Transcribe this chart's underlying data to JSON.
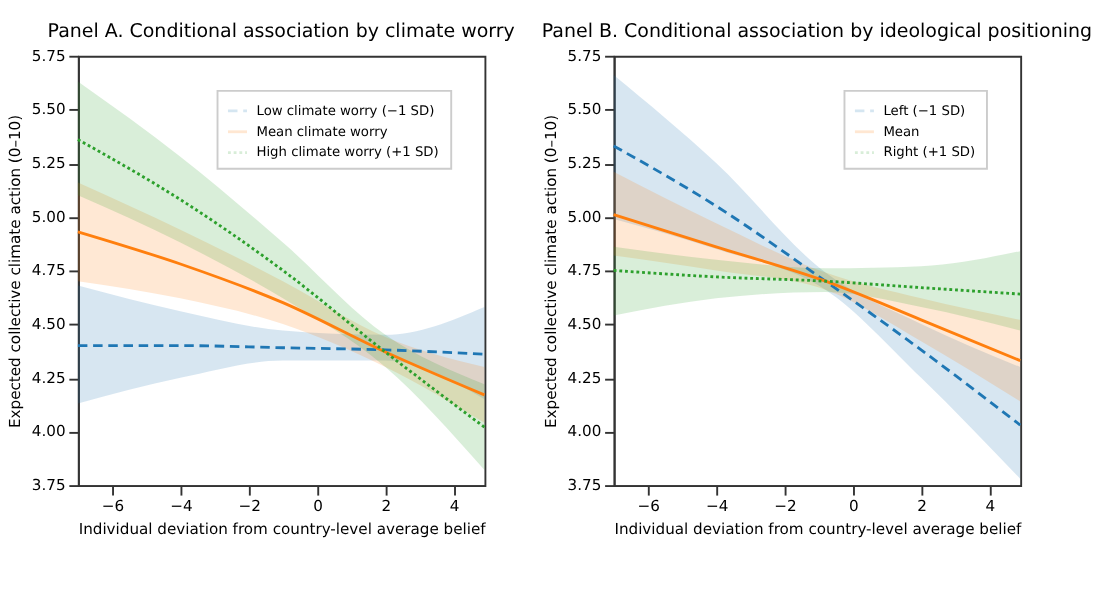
{
  "chart_data": [
    {
      "type": "line",
      "title": "Panel A. Conditional association by climate worry",
      "xlabel": "Individual deviation from country-level average belief",
      "ylabel": "Expected collective climate action (0–10)",
      "xlim": [
        -7,
        4.9
      ],
      "xticks": [
        {
          "value": -6,
          "label": "−6"
        },
        {
          "value": -4,
          "label": "−4"
        },
        {
          "value": -2,
          "label": "−2"
        },
        0,
        2,
        4
      ],
      "ylim": [
        3.75,
        5.75
      ],
      "yticks": [
        5.75,
        {
          "value": 5.5,
          "label": "5.50"
        },
        5.25,
        {
          "value": 5.0,
          "label": "5.00"
        },
        4.75,
        {
          "value": 4.5,
          "label": "4.50"
        },
        4.25,
        {
          "value": 4.0,
          "label": "4.00"
        },
        3.75
      ],
      "grid": false,
      "legend": "top right",
      "marker": "none",
      "series": [
        {
          "name": "Low climate worry (−1 SD)",
          "color": "#1f77b4",
          "line_style": "dashed",
          "x": [
            -7,
            -4,
            -1,
            2,
            4.9
          ],
          "values": [
            4.4,
            4.4,
            4.39,
            4.38,
            4.36
          ],
          "lower": [
            4.13,
            4.25,
            4.33,
            4.33,
            4.15
          ],
          "upper": [
            4.68,
            4.56,
            4.47,
            4.45,
            4.58
          ]
        },
        {
          "name": "Mean climate worry",
          "color": "#ff7f0e",
          "line_style": "solid",
          "x": [
            -7,
            -4,
            -1,
            2,
            4.9
          ],
          "values": [
            4.93,
            4.78,
            4.6,
            4.37,
            4.17
          ],
          "lower": [
            4.7,
            4.62,
            4.5,
            4.3,
            4.04
          ],
          "upper": [
            5.16,
            4.94,
            4.7,
            4.44,
            4.3
          ]
        },
        {
          "name": "High climate worry (+1 SD)",
          "color": "#2ca02c",
          "line_style": "dotted",
          "x": [
            -7,
            -4,
            -1,
            2,
            4.9
          ],
          "values": [
            5.36,
            5.08,
            4.75,
            4.37,
            4.02
          ],
          "lower": [
            5.1,
            4.88,
            4.62,
            4.3,
            3.82
          ],
          "upper": [
            5.63,
            5.28,
            4.88,
            4.45,
            4.22
          ]
        }
      ]
    },
    {
      "type": "line",
      "title": "Panel B. Conditional association by ideological positioning",
      "xlabel": "Individual deviation from country-level average belief",
      "ylabel": "Expected collective climate action (0–10)",
      "xlim": [
        -7,
        4.9
      ],
      "xticks": [
        {
          "value": -6,
          "label": "−6"
        },
        {
          "value": -4,
          "label": "−4"
        },
        {
          "value": -2,
          "label": "−2"
        },
        0,
        2,
        4
      ],
      "ylim": [
        3.75,
        5.75
      ],
      "yticks": [
        5.75,
        {
          "value": 5.5,
          "label": "5.50"
        },
        5.25,
        {
          "value": 5.0,
          "label": "5.00"
        },
        4.75,
        {
          "value": 4.5,
          "label": "4.50"
        },
        4.25,
        {
          "value": 4.0,
          "label": "4.00"
        },
        3.75
      ],
      "grid": false,
      "legend": "top right",
      "marker": "none",
      "series": [
        {
          "name": "Left (−1 SD)",
          "color": "#1f77b4",
          "line_style": "dashed",
          "x": [
            -7,
            -4,
            -0.8,
            2,
            4.9
          ],
          "values": [
            5.33,
            5.05,
            4.7,
            4.38,
            4.03
          ],
          "lower": [
            4.99,
            4.85,
            4.66,
            4.25,
            3.78
          ],
          "upper": [
            5.66,
            5.25,
            4.74,
            4.5,
            4.3
          ]
        },
        {
          "name": "Mean",
          "color": "#ff7f0e",
          "line_style": "solid",
          "x": [
            -7,
            -4,
            -0.8,
            2,
            4.9
          ],
          "values": [
            5.01,
            4.86,
            4.7,
            4.52,
            4.33
          ],
          "lower": [
            4.82,
            4.75,
            4.66,
            4.42,
            4.14
          ],
          "upper": [
            5.21,
            4.97,
            4.74,
            4.62,
            4.52
          ]
        },
        {
          "name": "Right (+1 SD)",
          "color": "#2ca02c",
          "line_style": "dotted",
          "x": [
            -7,
            -4,
            -0.8,
            2,
            4.9
          ],
          "values": [
            4.75,
            4.72,
            4.7,
            4.67,
            4.64
          ],
          "lower": [
            4.54,
            4.62,
            4.65,
            4.58,
            4.47
          ],
          "upper": [
            4.86,
            4.8,
            4.76,
            4.77,
            4.84
          ]
        }
      ]
    }
  ]
}
